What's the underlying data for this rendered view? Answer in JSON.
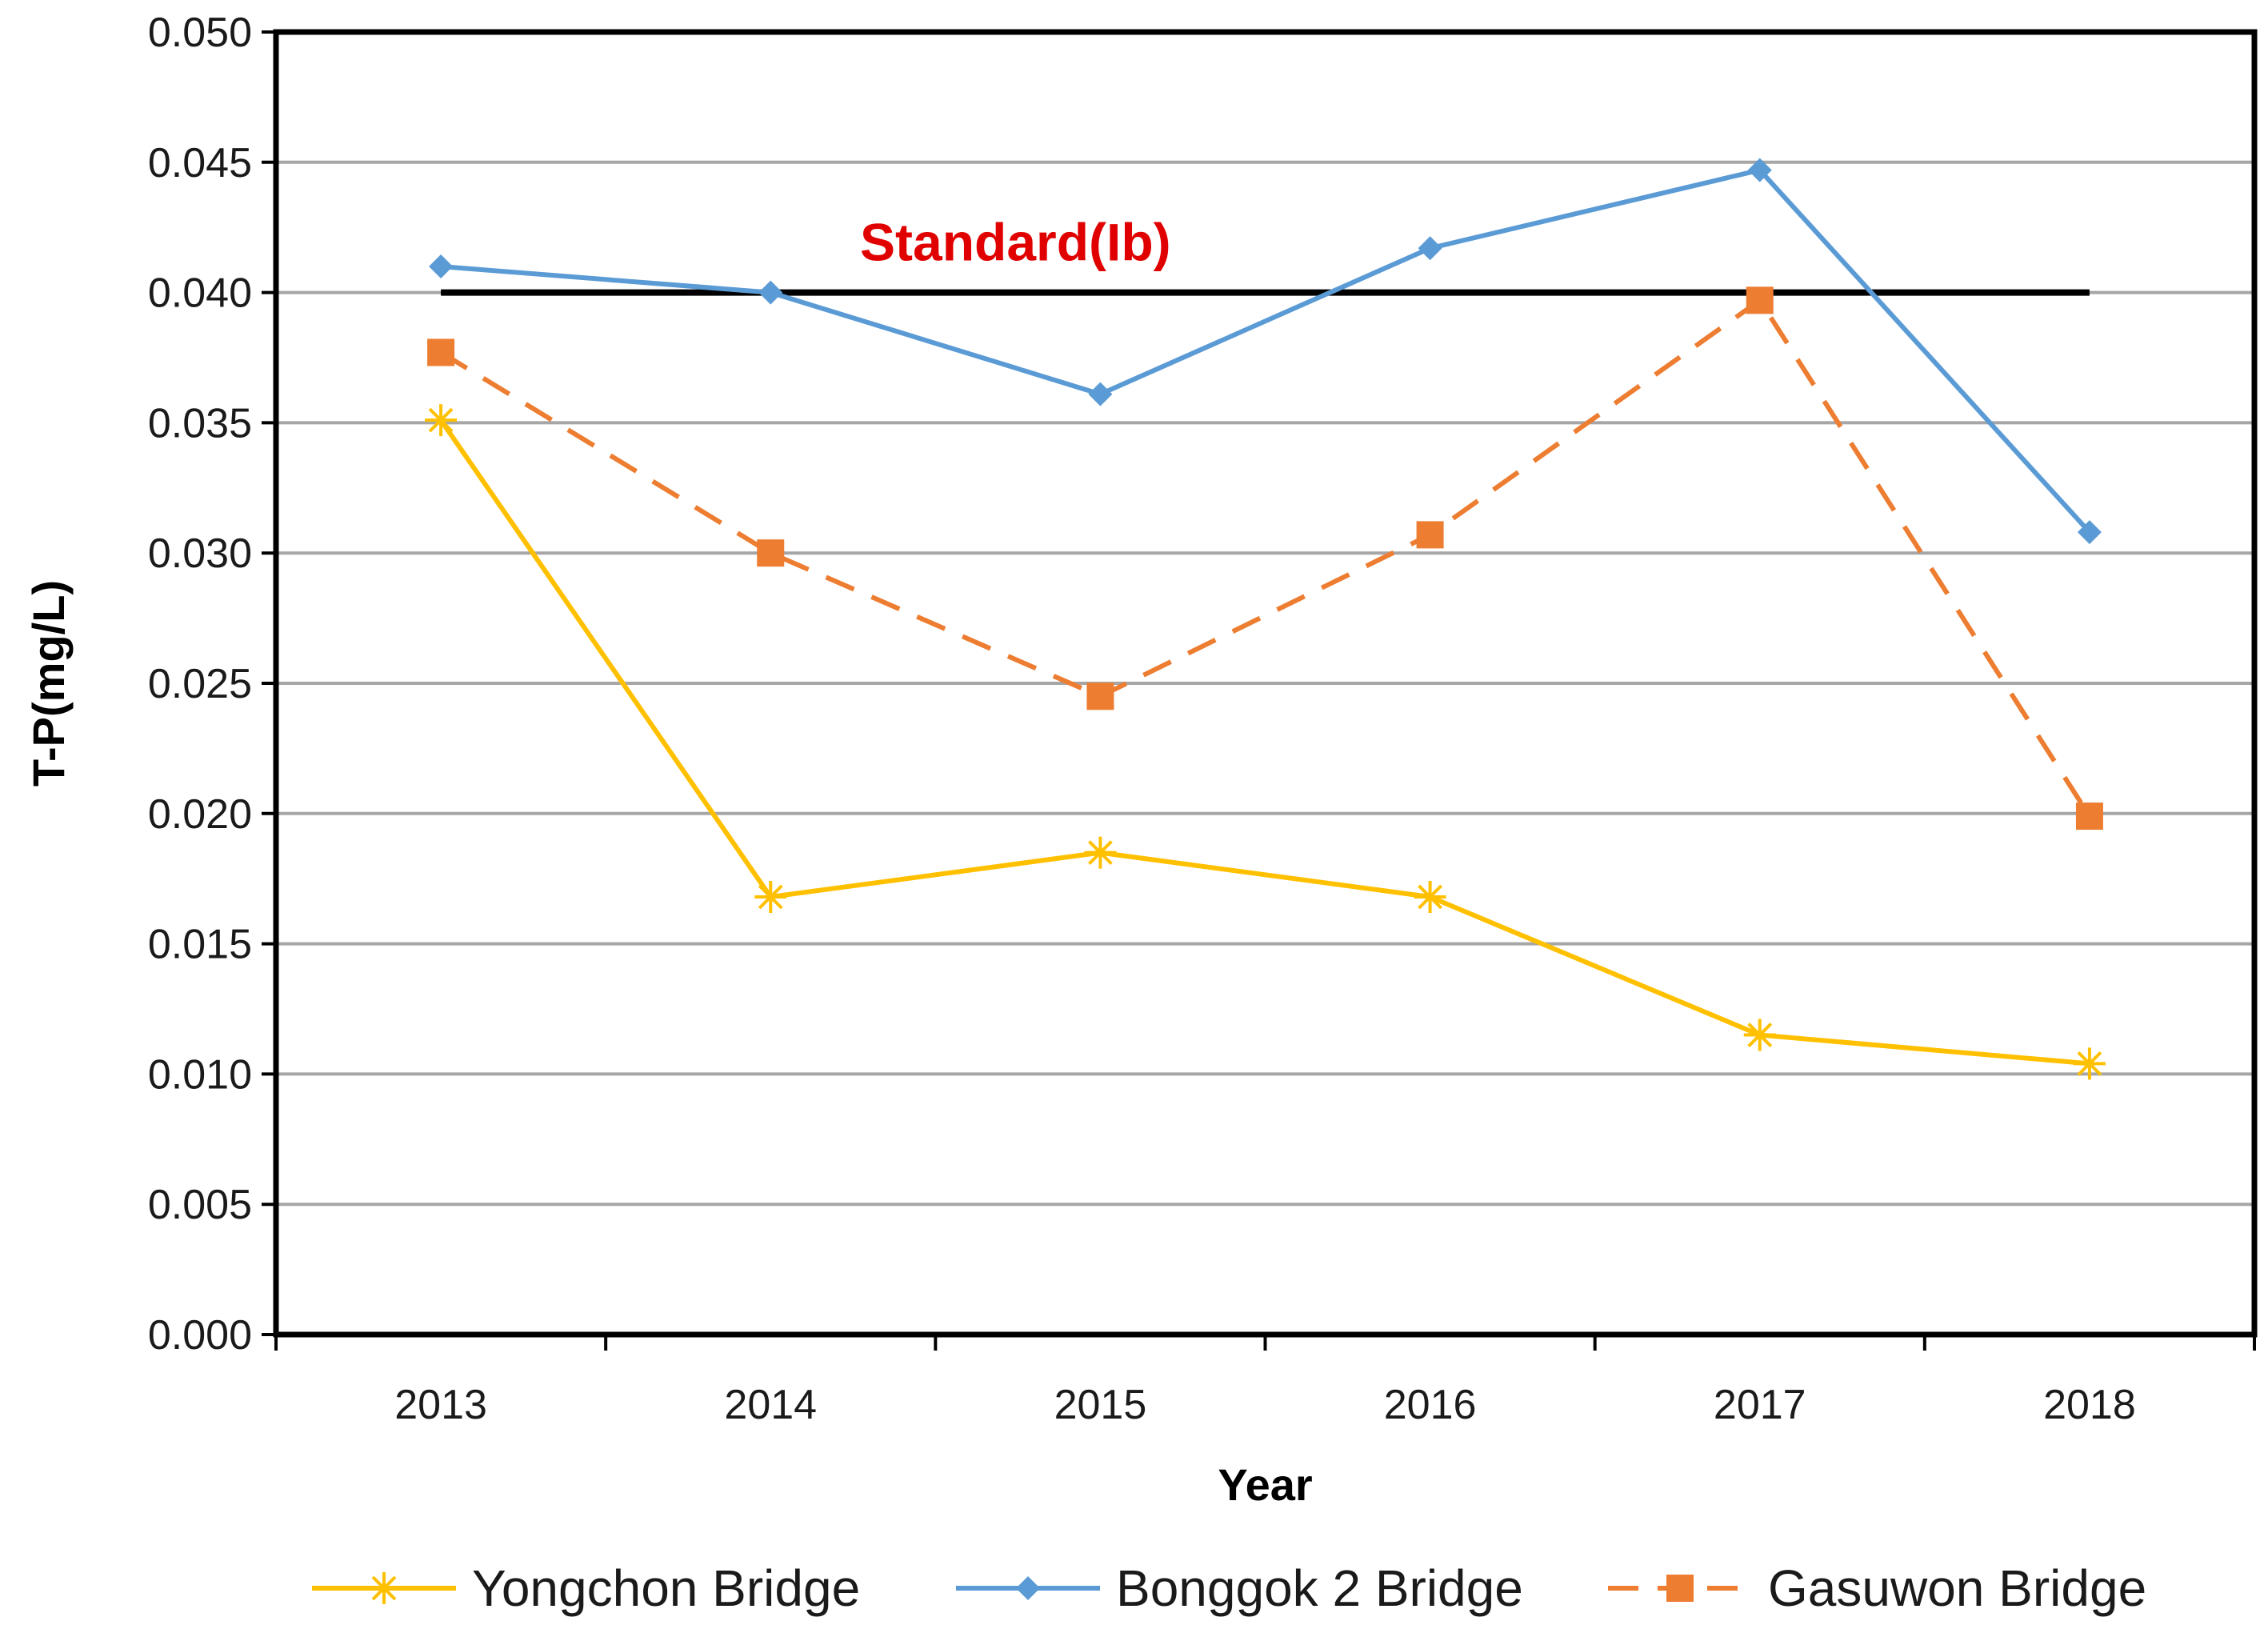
{
  "chart_data": {
    "type": "line",
    "categories": [
      "2013",
      "2014",
      "2015",
      "2016",
      "2017",
      "2018"
    ],
    "xlabel": "Year",
    "ylabel": "T-P(mg/L)",
    "ylim": [
      0,
      0.05
    ],
    "yticks": [
      "0.000",
      "0.005",
      "0.010",
      "0.015",
      "0.020",
      "0.025",
      "0.030",
      "0.035",
      "0.040",
      "0.045",
      "0.050"
    ],
    "grid": true,
    "legend_position": "bottom",
    "series": [
      {
        "name": "Yongchon Bridge",
        "values": [
          0.0351,
          0.0168,
          0.0185,
          0.0168,
          0.0115,
          0.0104
        ],
        "color": "#FFC000",
        "marker": "asterisk",
        "dash": "solid"
      },
      {
        "name": "Bonggok 2 Bridge",
        "values": [
          0.041,
          0.04,
          0.0361,
          0.0417,
          0.0447,
          0.0308
        ],
        "color": "#5B9BD5",
        "marker": "diamond",
        "dash": "solid"
      },
      {
        "name": "Gasuwon Bridge",
        "values": [
          0.0377,
          0.03,
          0.0245,
          0.0307,
          0.0397,
          0.0199
        ],
        "color": "#ED7D31",
        "marker": "square",
        "dash": "dashed"
      }
    ],
    "reference_line": {
      "value": 0.04,
      "label": "Standard(Ib)",
      "line_color": "#000000",
      "label_color": "#E00000"
    }
  }
}
